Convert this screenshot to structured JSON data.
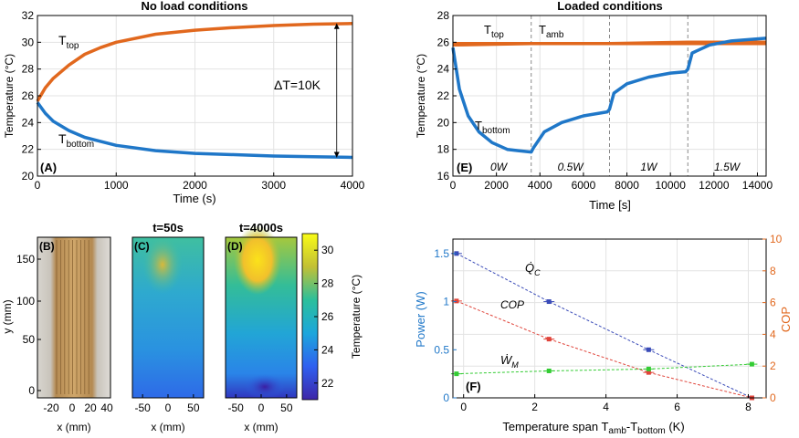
{
  "colors": {
    "blue": "#1f77c8",
    "orange": "#e1681e",
    "gray": "#9a9a9a"
  },
  "chart_data": [
    {
      "id": "A",
      "type": "line",
      "panel_label": "(A)",
      "title": "No load conditions",
      "xlabel": "Time (s)",
      "ylabel": "Temperature (°C)",
      "xlim": [
        0,
        4000
      ],
      "ylim": [
        20,
        32
      ],
      "xticks": [
        0,
        1000,
        2000,
        3000,
        4000
      ],
      "yticks": [
        20,
        22,
        24,
        26,
        28,
        30,
        32
      ],
      "grid": true,
      "series": [
        {
          "color": "#e1681e",
          "label": "T",
          "label_sub": "top",
          "x": [
            0,
            100,
            200,
            400,
            600,
            800,
            1000,
            1500,
            2000,
            2500,
            3000,
            3500,
            4000
          ],
          "y": [
            25.6,
            26.6,
            27.3,
            28.3,
            29.1,
            29.6,
            30.0,
            30.6,
            30.9,
            31.1,
            31.25,
            31.35,
            31.4
          ]
        },
        {
          "color": "#1f77c8",
          "label": "T",
          "label_sub": "bottom",
          "x": [
            0,
            100,
            200,
            400,
            600,
            800,
            1000,
            1500,
            2000,
            2500,
            3000,
            3500,
            4000
          ],
          "y": [
            25.5,
            24.7,
            24.1,
            23.4,
            22.9,
            22.6,
            22.3,
            21.9,
            21.7,
            21.6,
            21.5,
            21.45,
            21.4
          ]
        }
      ],
      "annotations": [
        {
          "text": "ΔT=10K",
          "from": [
            3800,
            21.4
          ],
          "to": [
            3800,
            31.4
          ]
        }
      ]
    },
    {
      "id": "E",
      "type": "line",
      "panel_label": "(E)",
      "title": "Loaded conditions",
      "xlabel": "Time [s]",
      "ylabel": "Temperature (°C)",
      "xlim": [
        0,
        14400
      ],
      "ylim": [
        16,
        28
      ],
      "xticks": [
        0,
        2000,
        4000,
        6000,
        8000,
        10000,
        12000,
        14000
      ],
      "yticks": [
        16,
        18,
        20,
        22,
        24,
        26,
        28
      ],
      "grid": true,
      "vlines": [
        3600,
        7200,
        10800
      ],
      "segment_labels": [
        {
          "x": 2100,
          "text": "0W"
        },
        {
          "x": 5400,
          "text": "0.5W"
        },
        {
          "x": 9000,
          "text": "1W"
        },
        {
          "x": 12600,
          "text": "1.5W"
        }
      ],
      "series": [
        {
          "color": "#e1681e",
          "label": "T",
          "label_sub": "top",
          "x": [
            0,
            3600,
            7200,
            10800,
            14400
          ],
          "y": [
            25.8,
            25.9,
            25.9,
            26.0,
            26.0
          ]
        },
        {
          "color": "#e1681e",
          "label": "T",
          "label_sub": "amb",
          "x": [
            0,
            14400
          ],
          "y": [
            25.9,
            25.9
          ]
        },
        {
          "color": "#1f77c8",
          "label": "T",
          "label_sub": "bottom",
          "x": [
            0,
            300,
            700,
            1200,
            1800,
            2500,
            3000,
            3600,
            3700,
            4200,
            5000,
            6000,
            7100,
            7200,
            7400,
            8000,
            9000,
            10000,
            10700,
            10800,
            11000,
            11800,
            12800,
            14400
          ],
          "y": [
            25.6,
            22.5,
            20.5,
            19.3,
            18.5,
            18.0,
            17.9,
            17.8,
            18.1,
            19.3,
            20.0,
            20.5,
            20.8,
            21.0,
            22.2,
            22.9,
            23.4,
            23.7,
            23.8,
            24.0,
            25.2,
            25.8,
            26.1,
            26.3
          ]
        }
      ]
    },
    {
      "id": "F",
      "type": "line",
      "panel_label": "(F)",
      "xlabel": "Temperature span T",
      "xlabel_sub1": "amb",
      "xlabel_mid": "-T",
      "xlabel_sub2": "bottom",
      "xlabel_end": " (K)",
      "ylabel_left": "Power (W)",
      "ylabel_right": "COP",
      "xlim": [
        -0.3,
        8.5
      ],
      "ylim_left": [
        0,
        1.65
      ],
      "ylim_right": [
        0,
        10
      ],
      "xticks": [
        0,
        2,
        4,
        6,
        8
      ],
      "yticks_left": [
        0,
        0.5,
        1,
        1.5
      ],
      "yticks_right": [
        0,
        2,
        4,
        6,
        8,
        10
      ],
      "grid": true,
      "series": [
        {
          "name": "Q̇C",
          "axis": "left",
          "color": "#3a4bb8",
          "x": [
            -0.2,
            2.4,
            5.2,
            8.1
          ],
          "y": [
            1.5,
            1.0,
            0.5,
            0.0
          ]
        },
        {
          "name": "COP",
          "axis": "right",
          "color": "#e0443a",
          "x": [
            -0.2,
            2.4,
            5.2,
            8.1
          ],
          "y": [
            6.1,
            3.7,
            1.6,
            0.0
          ]
        },
        {
          "name": "ẆM",
          "axis": "left",
          "color": "#33cc33",
          "x": [
            -0.2,
            2.4,
            5.2,
            8.1
          ],
          "y": [
            0.25,
            0.28,
            0.3,
            0.35
          ]
        }
      ],
      "series_labels": [
        {
          "text": "Q̇",
          "sub": "C"
        },
        {
          "text": "COP"
        },
        {
          "text": "Ẇ",
          "sub": "M"
        }
      ]
    },
    {
      "id": "B",
      "type": "image",
      "panel_label": "(B)",
      "xlabel": "x (mm)",
      "ylabel": "y (mm)",
      "xticks": [
        -20,
        0,
        20,
        40
      ],
      "yticks": [
        0,
        50,
        100,
        150
      ]
    },
    {
      "id": "C",
      "type": "heatmap",
      "panel_label": "(C)",
      "title": "t=50s",
      "xlabel": "x (mm)",
      "xticks": [
        -50,
        0,
        50
      ]
    },
    {
      "id": "D",
      "type": "heatmap",
      "panel_label": "(D)",
      "title": "t=4000s",
      "xlabel": "x (mm)",
      "xticks": [
        -50,
        0,
        50
      ]
    },
    {
      "id": "colorbar",
      "type": "colorbar",
      "label": "Temperature (°C)",
      "range": [
        21,
        31
      ],
      "ticks": [
        22,
        24,
        26,
        28,
        30
      ]
    }
  ]
}
